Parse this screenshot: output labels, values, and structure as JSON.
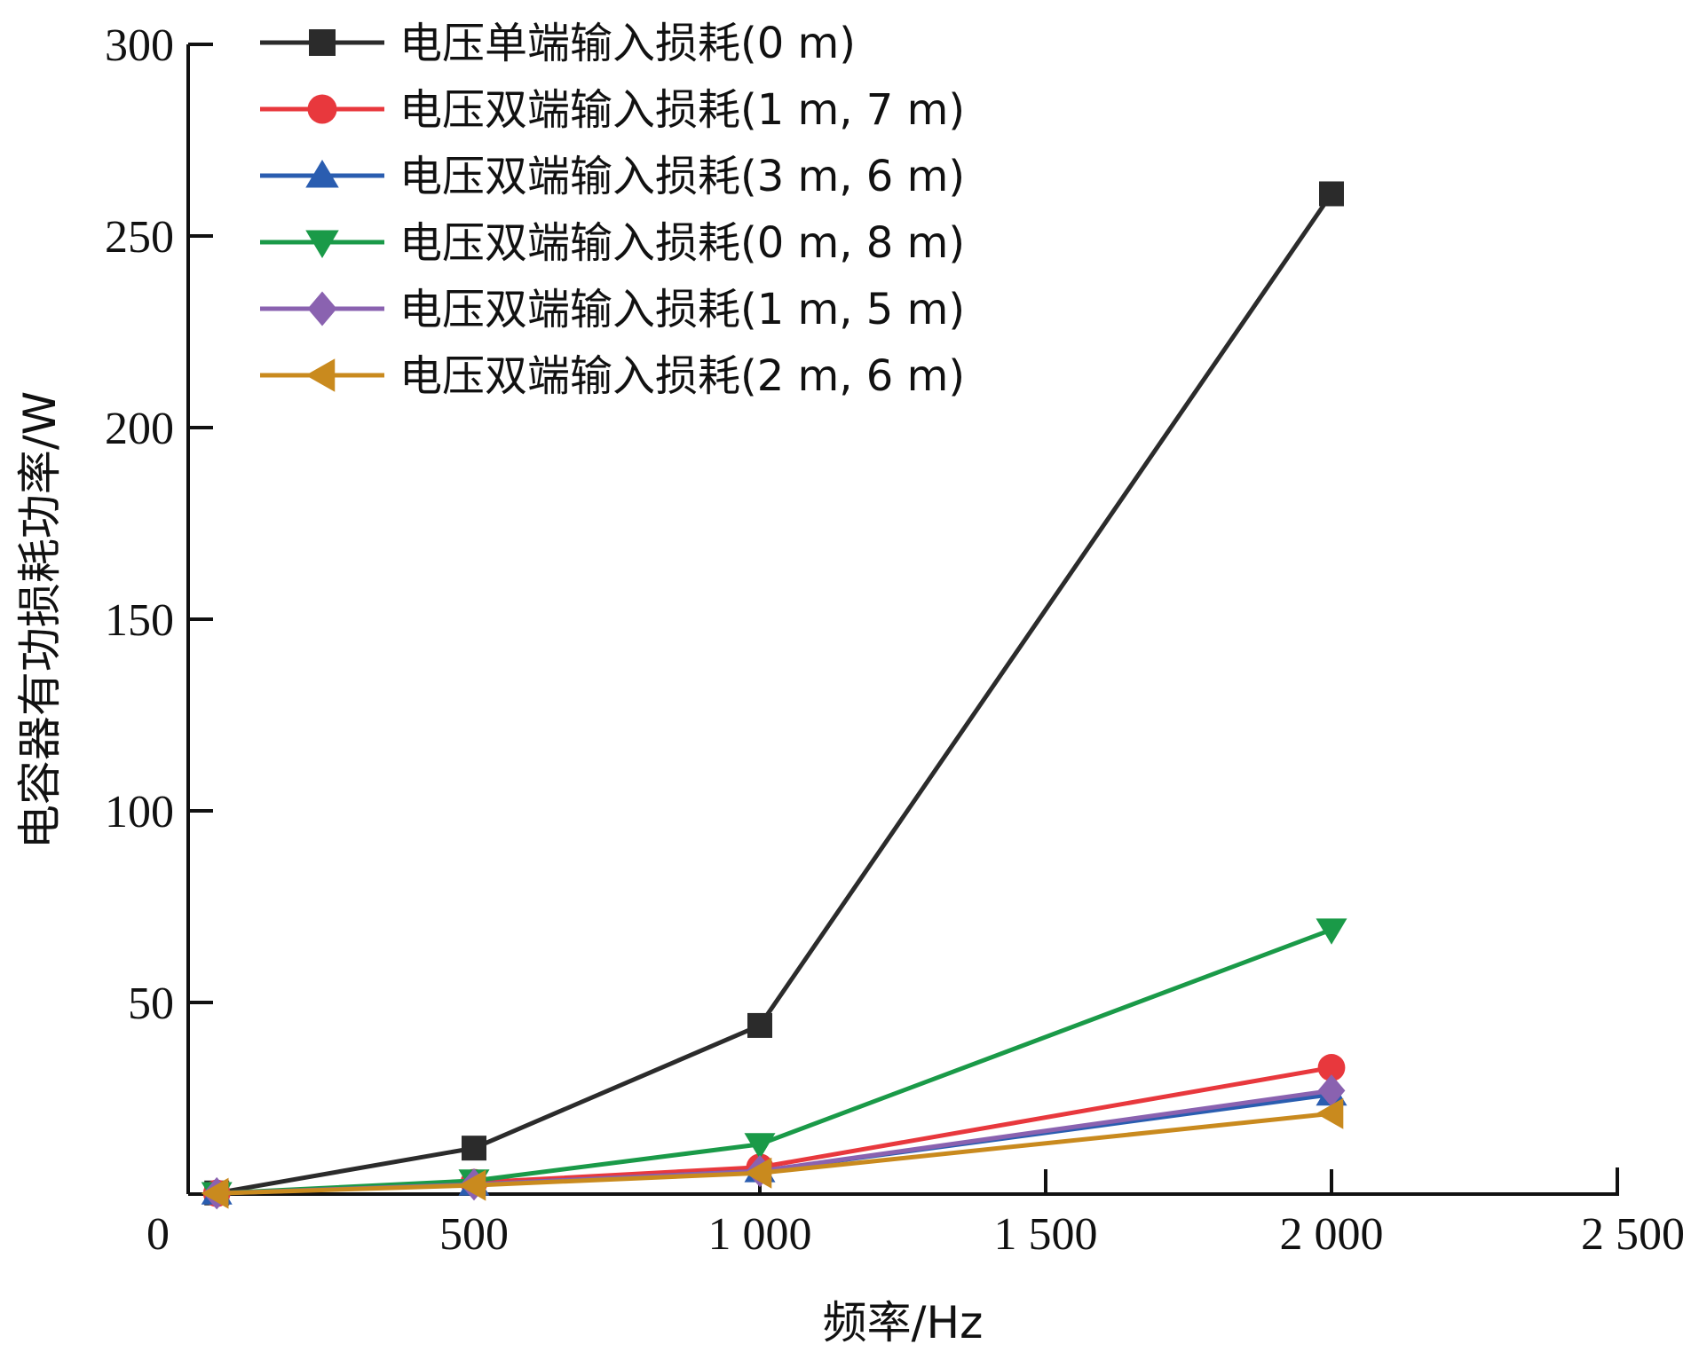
{
  "chart_data": {
    "type": "line",
    "xlabel": "频率/Hz",
    "ylabel": "电容器有功损耗功率/W",
    "xlim": [
      0,
      2500
    ],
    "ylim": [
      0,
      300
    ],
    "x_ticks": [
      0,
      500,
      1000,
      1500,
      2000,
      2500
    ],
    "x_tick_labels": [
      "0",
      "500",
      "1 000",
      "1 500",
      "2 000",
      "2 500"
    ],
    "y_ticks": [
      50,
      100,
      150,
      200,
      250,
      300
    ],
    "y_tick_labels": [
      "50",
      "100",
      "150",
      "200",
      "250",
      "300"
    ],
    "grid": false,
    "legend_position": "top-left",
    "x": [
      50,
      500,
      1000,
      2000
    ],
    "series": [
      {
        "name": "电压单端输入损耗(0 m)",
        "color": "#2b2b2b",
        "marker": "square",
        "values": [
          0.3,
          12,
          44,
          261
        ]
      },
      {
        "name": "电压双端输入损耗(1 m, 7 m)",
        "color": "#e8383d",
        "marker": "circle",
        "values": [
          0.2,
          3,
          7,
          33
        ]
      },
      {
        "name": "电压双端输入损耗(3 m, 6 m)",
        "color": "#2a5db0",
        "marker": "triangle-up",
        "values": [
          0.2,
          2.5,
          6,
          26
        ]
      },
      {
        "name": "电压双端输入损耗(0 m, 8 m)",
        "color": "#1a9a48",
        "marker": "triangle-down",
        "values": [
          0.2,
          3.5,
          13,
          69
        ]
      },
      {
        "name": "电压双端输入损耗(1 m, 5 m)",
        "color": "#8a62b0",
        "marker": "diamond",
        "values": [
          0.2,
          2.5,
          6,
          27
        ]
      },
      {
        "name": "电压双端输入损耗(2 m, 6 m)",
        "color": "#c98a1e",
        "marker": "triangle-left",
        "values": [
          0.2,
          2.3,
          5.5,
          21
        ]
      }
    ]
  }
}
